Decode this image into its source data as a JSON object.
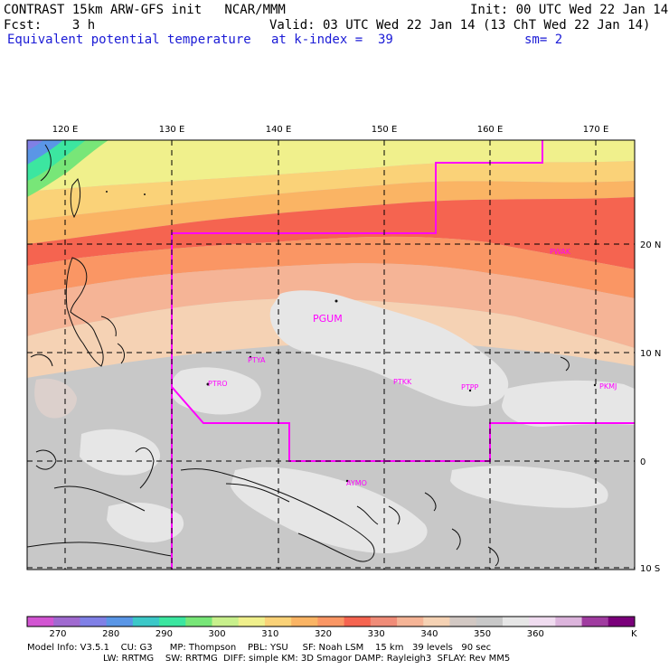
{
  "header": {
    "line1_left": "CONTRAST 15km ARW-GFS init   NCAR/MMM",
    "line1_right": "Init: 00 UTC Wed 22 Jan 14",
    "line2_left": "Fcst:    3 h",
    "line2_right": "Valid: 03 UTC Wed 22 Jan 14 (13 ChT Wed 22 Jan 14)",
    "line3_left": "Equivalent potential temperature",
    "line3_mid": "at k-index =  39",
    "line3_right": "sm= 2"
  },
  "map": {
    "lon_labels": [
      "120 E",
      "130 E",
      "140 E",
      "150 E",
      "160 E",
      "170 E"
    ],
    "lat_labels": [
      "20 N",
      "10 N",
      "0",
      "10 S"
    ],
    "stations": [
      "PWAK",
      "PGUM",
      "PTYA",
      "PTRO",
      "PTKK",
      "PTPP",
      "PKMJ",
      "AYMO"
    ]
  },
  "colorbar": {
    "colors": [
      "#d255d2",
      "#a06ad0",
      "#8080e6",
      "#5a96e6",
      "#3cc8c8",
      "#3ce6a0",
      "#78e678",
      "#c8f08c",
      "#f0f08c",
      "#fad278",
      "#fab464",
      "#fa9664",
      "#f56450",
      "#f08c78",
      "#f5b496",
      "#f5d2b4",
      "#d2c8c3",
      "#c8c8c8",
      "#e6e6e6",
      "#f0dcf0",
      "#dcb4dc",
      "#a03ca0",
      "#7a007a"
    ],
    "labels": [
      "270",
      "280",
      "290",
      "300",
      "310",
      "320",
      "330",
      "340",
      "350",
      "360"
    ],
    "unit": "K"
  },
  "footer": {
    "line1": "Model Info: V3.5.1    CU: G3      MP: Thompson    PBL: YSU     SF: Noah LSM    15 km   39 levels   90 sec",
    "line2": "LW: RRTMG    SW: RRTMG  DIFF: simple KM: 3D Smagor DAMP: Rayleigh3  SFLAY: Rev MM5"
  }
}
